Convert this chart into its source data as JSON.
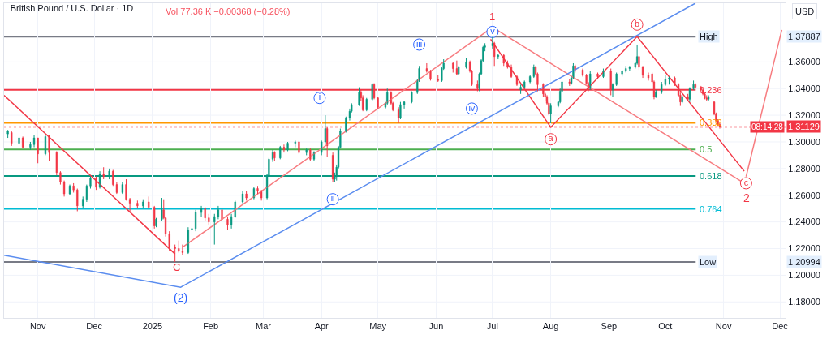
{
  "chart_data": {
    "type": "candlestick",
    "title": "British Pound / U.S. Dollar · 1D",
    "subtitle": "Vol 77.36 K −0.00368 (−0.28%)",
    "ylabel": "USD",
    "x": [
      "2024-10-16",
      "2024-10-18",
      "2024-10-22",
      "2024-10-24",
      "2024-10-28",
      "2024-10-30",
      "2024-11-01",
      "2024-11-05",
      "2024-11-07",
      "2024-11-11",
      "2024-11-13",
      "2024-11-15",
      "2024-11-18",
      "2024-11-20",
      "2024-11-22",
      "2024-11-25",
      "2024-11-27",
      "2024-11-29",
      "2024-12-02",
      "2024-12-04",
      "2024-12-06",
      "2024-12-09",
      "2024-12-11",
      "2024-12-13",
      "2024-12-16",
      "2024-12-18",
      "2024-12-20",
      "2024-12-24",
      "2024-12-27",
      "2024-12-30",
      "2025-01-02",
      "2025-01-03",
      "2025-01-06",
      "2025-01-07",
      "2025-01-08",
      "2025-01-10",
      "2025-01-13",
      "2025-01-15",
      "2025-01-17",
      "2025-01-20",
      "2025-01-22",
      "2025-01-24",
      "2025-01-27",
      "2025-01-29",
      "2025-01-31",
      "2025-02-03",
      "2025-02-05",
      "2025-02-07",
      "2025-02-10",
      "2025-02-12",
      "2025-02-14",
      "2025-02-18",
      "2025-02-20",
      "2025-02-24",
      "2025-02-26",
      "2025-02-28",
      "2025-03-03",
      "2025-03-04",
      "2025-03-06",
      "2025-03-07",
      "2025-03-10",
      "2025-03-12",
      "2025-03-14",
      "2025-03-18",
      "2025-03-20",
      "2025-03-24",
      "2025-03-26",
      "2025-03-28",
      "2025-04-01",
      "2025-04-03",
      "2025-04-04",
      "2025-04-07",
      "2025-04-08",
      "2025-04-09",
      "2025-04-10",
      "2025-04-11",
      "2025-04-14",
      "2025-04-16",
      "2025-04-17",
      "2025-04-21",
      "2025-04-22",
      "2025-04-23",
      "2025-04-25",
      "2025-04-28",
      "2025-04-29",
      "2025-05-01",
      "2025-05-05",
      "2025-05-06",
      "2025-05-08",
      "2025-05-09",
      "2025-05-12",
      "2025-05-13",
      "2025-05-15",
      "2025-05-19",
      "2025-05-22",
      "2025-05-23",
      "2025-05-27",
      "2025-05-29",
      "2025-06-02",
      "2025-06-04",
      "2025-06-05",
      "2025-06-10",
      "2025-06-12",
      "2025-06-13",
      "2025-06-17",
      "2025-06-19",
      "2025-06-20",
      "2025-06-23",
      "2025-06-24",
      "2025-06-25",
      "2025-06-26",
      "2025-06-27",
      "2025-07-01",
      "2025-07-02",
      "2025-07-04",
      "2025-07-07",
      "2025-07-09",
      "2025-07-11",
      "2025-07-14",
      "2025-07-16",
      "2025-07-18",
      "2025-07-21",
      "2025-07-23",
      "2025-07-24",
      "2025-07-25",
      "2025-07-28",
      "2025-07-29",
      "2025-07-30",
      "2025-07-31",
      "2025-08-01",
      "2025-08-05",
      "2025-08-06",
      "2025-08-07",
      "2025-08-11",
      "2025-08-12",
      "2025-08-13",
      "2025-08-14",
      "2025-08-18",
      "2025-08-20",
      "2025-08-21",
      "2025-08-22",
      "2025-08-26",
      "2025-08-29",
      "2025-09-02",
      "2025-09-03",
      "2025-09-05",
      "2025-09-08",
      "2025-09-10",
      "2025-09-12",
      "2025-09-15",
      "2025-09-16",
      "2025-09-17",
      "2025-09-19",
      "2025-09-22",
      "2025-09-24",
      "2025-09-25",
      "2025-09-26",
      "2025-09-29",
      "2025-10-01",
      "2025-10-03",
      "2025-10-06",
      "2025-10-08",
      "2025-10-09",
      "2025-10-10",
      "2025-10-13",
      "2025-10-14",
      "2025-10-16",
      "2025-10-17",
      "2025-10-20",
      "2025-10-21",
      "2025-10-22",
      "2025-10-23",
      "2025-10-24",
      "2025-10-27",
      "2025-10-28",
      "2025-10-29",
      "2025-10-30"
    ],
    "ohlc": [
      [
        1.306,
        1.309,
        1.303,
        1.308
      ],
      [
        1.307,
        1.308,
        1.297,
        1.299
      ],
      [
        1.299,
        1.304,
        1.297,
        1.303
      ],
      [
        1.303,
        1.304,
        1.295,
        1.296
      ],
      [
        1.296,
        1.3,
        1.294,
        1.298
      ],
      [
        1.298,
        1.305,
        1.296,
        1.303
      ],
      [
        1.303,
        1.303,
        1.284,
        1.291
      ],
      [
        1.291,
        1.305,
        1.29,
        1.304
      ],
      [
        1.304,
        1.305,
        1.286,
        1.292
      ],
      [
        1.292,
        1.293,
        1.275,
        1.277
      ],
      [
        1.277,
        1.278,
        1.268,
        1.27
      ],
      [
        1.27,
        1.271,
        1.259,
        1.261
      ],
      [
        1.261,
        1.268,
        1.26,
        1.267
      ],
      [
        1.267,
        1.269,
        1.262,
        1.264
      ],
      [
        1.264,
        1.265,
        1.248,
        1.252
      ],
      [
        1.252,
        1.259,
        1.25,
        1.257
      ],
      [
        1.257,
        1.268,
        1.255,
        1.267
      ],
      [
        1.267,
        1.274,
        1.265,
        1.273
      ],
      [
        1.273,
        1.274,
        1.264,
        1.266
      ],
      [
        1.266,
        1.278,
        1.265,
        1.276
      ],
      [
        1.276,
        1.281,
        1.272,
        1.274
      ],
      [
        1.274,
        1.28,
        1.272,
        1.278
      ],
      [
        1.278,
        1.279,
        1.267,
        1.268
      ],
      [
        1.268,
        1.27,
        1.261,
        1.262
      ],
      [
        1.262,
        1.27,
        1.261,
        1.268
      ],
      [
        1.268,
        1.272,
        1.256,
        1.257
      ],
      [
        1.257,
        1.258,
        1.247,
        1.254
      ],
      [
        1.254,
        1.256,
        1.25,
        1.252
      ],
      [
        1.252,
        1.257,
        1.25,
        1.255
      ],
      [
        1.255,
        1.259,
        1.25,
        1.251
      ],
      [
        1.251,
        1.252,
        1.235,
        1.237
      ],
      [
        1.237,
        1.243,
        1.236,
        1.242
      ],
      [
        1.242,
        1.258,
        1.241,
        1.249
      ],
      [
        1.249,
        1.257,
        1.242,
        1.243
      ],
      [
        1.243,
        1.244,
        1.229,
        1.231
      ],
      [
        1.231,
        1.233,
        1.218,
        1.221
      ],
      [
        1.221,
        1.223,
        1.20994,
        1.22
      ],
      [
        1.22,
        1.226,
        1.217,
        1.218
      ],
      [
        1.218,
        1.223,
        1.215,
        1.217
      ],
      [
        1.217,
        1.236,
        1.216,
        1.234
      ],
      [
        1.234,
        1.239,
        1.23,
        1.235
      ],
      [
        1.235,
        1.249,
        1.233,
        1.247
      ],
      [
        1.247,
        1.252,
        1.244,
        1.25
      ],
      [
        1.25,
        1.251,
        1.241,
        1.243
      ],
      [
        1.243,
        1.246,
        1.238,
        1.24
      ],
      [
        1.24,
        1.246,
        1.223,
        1.244
      ],
      [
        1.244,
        1.252,
        1.242,
        1.249
      ],
      [
        1.249,
        1.251,
        1.24,
        1.242
      ],
      [
        1.242,
        1.244,
        1.234,
        1.238
      ],
      [
        1.238,
        1.246,
        1.235,
        1.244
      ],
      [
        1.244,
        1.256,
        1.243,
        1.255
      ],
      [
        1.255,
        1.263,
        1.254,
        1.261
      ],
      [
        1.261,
        1.263,
        1.256,
        1.258
      ],
      [
        1.258,
        1.266,
        1.257,
        1.265
      ],
      [
        1.265,
        1.267,
        1.261,
        1.263
      ],
      [
        1.263,
        1.264,
        1.256,
        1.258
      ],
      [
        1.258,
        1.276,
        1.257,
        1.275
      ],
      [
        1.275,
        1.288,
        1.274,
        1.287
      ],
      [
        1.287,
        1.294,
        1.285,
        1.292
      ],
      [
        1.292,
        1.293,
        1.286,
        1.288
      ],
      [
        1.288,
        1.297,
        1.287,
        1.296
      ],
      [
        1.296,
        1.298,
        1.292,
        1.294
      ],
      [
        1.294,
        1.3,
        1.293,
        1.299
      ],
      [
        1.299,
        1.301,
        1.296,
        1.3
      ],
      [
        1.3,
        1.301,
        1.291,
        1.292
      ],
      [
        1.292,
        1.295,
        1.29,
        1.294
      ],
      [
        1.294,
        1.295,
        1.286,
        1.287
      ],
      [
        1.287,
        1.293,
        1.286,
        1.292
      ],
      [
        1.292,
        1.301,
        1.29,
        1.3
      ],
      [
        1.3,
        1.32,
        1.299,
        1.31
      ],
      [
        1.31,
        1.311,
        1.289,
        1.297
      ],
      [
        1.29,
        1.292,
        1.27,
        1.272
      ],
      [
        1.272,
        1.277,
        1.27,
        1.274
      ],
      [
        1.274,
        1.283,
        1.271,
        1.281
      ],
      [
        1.281,
        1.297,
        1.28,
        1.296
      ],
      [
        1.296,
        1.31,
        1.295,
        1.308
      ],
      [
        1.308,
        1.319,
        1.307,
        1.318
      ],
      [
        1.318,
        1.325,
        1.316,
        1.323
      ],
      [
        1.323,
        1.329,
        1.322,
        1.328
      ],
      [
        1.328,
        1.341,
        1.327,
        1.337
      ],
      [
        1.337,
        1.339,
        1.331,
        1.333
      ],
      [
        1.333,
        1.335,
        1.323,
        1.324
      ],
      [
        1.324,
        1.333,
        1.323,
        1.332
      ],
      [
        1.332,
        1.344,
        1.331,
        1.343
      ],
      [
        1.343,
        1.344,
        1.332,
        1.333
      ],
      [
        1.333,
        1.334,
        1.325,
        1.326
      ],
      [
        1.326,
        1.33,
        1.325,
        1.329
      ],
      [
        1.329,
        1.34,
        1.328,
        1.337
      ],
      [
        1.337,
        1.338,
        1.328,
        1.329
      ],
      [
        1.329,
        1.33,
        1.323,
        1.324
      ],
      [
        1.324,
        1.326,
        1.314,
        1.318
      ],
      [
        1.318,
        1.33,
        1.317,
        1.328
      ],
      [
        1.328,
        1.331,
        1.325,
        1.33
      ],
      [
        1.33,
        1.338,
        1.329,
        1.337
      ],
      [
        1.337,
        1.347,
        1.336,
        1.346
      ],
      [
        1.346,
        1.357,
        1.345,
        1.355
      ],
      [
        1.355,
        1.359,
        1.352,
        1.353
      ],
      [
        1.353,
        1.354,
        1.346,
        1.347
      ],
      [
        1.347,
        1.35,
        1.345,
        1.346
      ],
      [
        1.346,
        1.356,
        1.345,
        1.355
      ],
      [
        1.355,
        1.362,
        1.354,
        1.359
      ],
      [
        1.359,
        1.36,
        1.352,
        1.355
      ],
      [
        1.355,
        1.361,
        1.35,
        1.351
      ],
      [
        1.351,
        1.357,
        1.35,
        1.356
      ],
      [
        1.356,
        1.363,
        1.355,
        1.36
      ],
      [
        1.36,
        1.361,
        1.352,
        1.353
      ],
      [
        1.353,
        1.354,
        1.342,
        1.343
      ],
      [
        1.343,
        1.346,
        1.338,
        1.34
      ],
      [
        1.34,
        1.352,
        1.338,
        1.351
      ],
      [
        1.351,
        1.362,
        1.35,
        1.361
      ],
      [
        1.361,
        1.372,
        1.36,
        1.371
      ],
      [
        1.371,
        1.374,
        1.368,
        1.372
      ],
      [
        1.372,
        1.37887,
        1.37,
        1.374
      ],
      [
        1.374,
        1.375,
        1.357,
        1.364
      ],
      [
        1.364,
        1.366,
        1.362,
        1.365
      ],
      [
        1.365,
        1.366,
        1.357,
        1.359
      ],
      [
        1.359,
        1.361,
        1.355,
        1.356
      ],
      [
        1.356,
        1.358,
        1.348,
        1.349
      ],
      [
        1.349,
        1.35,
        1.342,
        1.343
      ],
      [
        1.339,
        1.343,
        1.336,
        1.341
      ],
      [
        1.341,
        1.346,
        1.34,
        1.345
      ],
      [
        1.345,
        1.35,
        1.344,
        1.349
      ],
      [
        1.349,
        1.358,
        1.348,
        1.356
      ],
      [
        1.356,
        1.357,
        1.35,
        1.351
      ],
      [
        1.351,
        1.352,
        1.338,
        1.343
      ],
      [
        1.343,
        1.344,
        1.334,
        1.336
      ],
      [
        1.336,
        1.337,
        1.331,
        1.334
      ],
      [
        1.334,
        1.335,
        1.328,
        1.329
      ],
      [
        1.329,
        1.33,
        1.32,
        1.321
      ],
      [
        1.321,
        1.329,
        1.314,
        1.327
      ],
      [
        1.327,
        1.331,
        1.326,
        1.33
      ],
      [
        1.33,
        1.34,
        1.329,
        1.338
      ],
      [
        1.338,
        1.346,
        1.337,
        1.345
      ],
      [
        1.345,
        1.347,
        1.342,
        1.344
      ],
      [
        1.344,
        1.349,
        1.343,
        1.348
      ],
      [
        1.348,
        1.359,
        1.347,
        1.357
      ],
      [
        1.357,
        1.358,
        1.352,
        1.354
      ],
      [
        1.354,
        1.355,
        1.349,
        1.35
      ],
      [
        1.35,
        1.351,
        1.343,
        1.344
      ],
      [
        1.344,
        1.345,
        1.338,
        1.34
      ],
      [
        1.34,
        1.353,
        1.339,
        1.351
      ],
      [
        1.351,
        1.352,
        1.347,
        1.349
      ],
      [
        1.349,
        1.355,
        1.348,
        1.353
      ],
      [
        1.353,
        1.355,
        1.335,
        1.339
      ],
      [
        1.339,
        1.344,
        1.334,
        1.343
      ],
      [
        1.343,
        1.352,
        1.342,
        1.351
      ],
      [
        1.351,
        1.354,
        1.349,
        1.353
      ],
      [
        1.353,
        1.357,
        1.352,
        1.355
      ],
      [
        1.355,
        1.357,
        1.353,
        1.356
      ],
      [
        1.356,
        1.36,
        1.355,
        1.359
      ],
      [
        1.359,
        1.373,
        1.358,
        1.364
      ],
      [
        1.364,
        1.365,
        1.354,
        1.356
      ],
      [
        1.356,
        1.357,
        1.348,
        1.35
      ],
      [
        1.35,
        1.352,
        1.346,
        1.348
      ],
      [
        1.351,
        1.352,
        1.344,
        1.345
      ],
      [
        1.345,
        1.346,
        1.332,
        1.334
      ],
      [
        1.334,
        1.339,
        1.333,
        1.337
      ],
      [
        1.337,
        1.345,
        1.336,
        1.343
      ],
      [
        1.343,
        1.35,
        1.342,
        1.347
      ],
      [
        1.347,
        1.349,
        1.343,
        1.348
      ],
      [
        1.348,
        1.349,
        1.342,
        1.343
      ],
      [
        1.343,
        1.344,
        1.334,
        1.335
      ],
      [
        1.335,
        1.337,
        1.327,
        1.33
      ],
      [
        1.33,
        1.335,
        1.329,
        1.334
      ],
      [
        1.334,
        1.336,
        1.331,
        1.332
      ],
      [
        1.332,
        1.341,
        1.33,
        1.34
      ],
      [
        1.34,
        1.346,
        1.339,
        1.343
      ],
      [
        1.343,
        1.344,
        1.34,
        1.341
      ],
      [
        1.341,
        1.342,
        1.338,
        1.339
      ],
      [
        1.339,
        1.34,
        1.335,
        1.336
      ],
      [
        1.336,
        1.337,
        1.332,
        1.333
      ],
      [
        1.333,
        1.335,
        1.331,
        1.332
      ],
      [
        1.332,
        1.335,
        1.331,
        1.334
      ],
      [
        1.33,
        1.331,
        1.32,
        1.321
      ],
      [
        1.321,
        1.322,
        1.315,
        1.316
      ],
      [
        1.316,
        1.317,
        1.312,
        1.313
      ],
      [
        1.313,
        1.314,
        1.31,
        1.31129
      ]
    ],
    "colors": [
      "#089981",
      "#f23645",
      "#089981",
      "#f23645",
      "#089981",
      "#089981",
      "#f23645",
      "#089981",
      "#f23645",
      "#f23645",
      "#f23645",
      "#f23645",
      "#089981",
      "#f23645",
      "#f23645",
      "#089981",
      "#089981",
      "#089981",
      "#f23645",
      "#089981",
      "#f23645",
      "#089981",
      "#f23645",
      "#f23645",
      "#089981",
      "#f23645",
      "#f23645",
      "#f23645",
      "#089981",
      "#f23645",
      "#f23645",
      "#089981",
      "#089981",
      "#f23645",
      "#f23645",
      "#f23645",
      "#f23645",
      "#f23645",
      "#f23645",
      "#089981",
      "#089981",
      "#089981",
      "#089981",
      "#f23645",
      "#f23645",
      "#089981",
      "#089981",
      "#f23645",
      "#f23645",
      "#089981",
      "#089981",
      "#089981",
      "#f23645",
      "#089981",
      "#f23645",
      "#f23645",
      "#089981",
      "#089981",
      "#089981",
      "#f23645",
      "#089981",
      "#f23645",
      "#089981",
      "#089981",
      "#f23645",
      "#089981",
      "#f23645",
      "#089981",
      "#089981",
      "#089981",
      "#f23645",
      "#f23645",
      "#089981",
      "#089981",
      "#089981",
      "#089981",
      "#089981",
      "#089981",
      "#089981",
      "#089981",
      "#f23645",
      "#f23645",
      "#089981",
      "#089981",
      "#f23645",
      "#f23645",
      "#089981",
      "#089981",
      "#f23645",
      "#f23645",
      "#f23645",
      "#089981",
      "#089981",
      "#089981",
      "#089981",
      "#089981",
      "#f23645",
      "#f23645",
      "#f23645",
      "#089981",
      "#089981",
      "#f23645",
      "#f23645",
      "#089981",
      "#089981",
      "#f23645",
      "#f23645",
      "#f23645",
      "#089981",
      "#089981",
      "#089981",
      "#089981",
      "#089981",
      "#f23645",
      "#089981",
      "#f23645",
      "#f23645",
      "#f23645",
      "#f23645",
      "#089981",
      "#089981",
      "#089981",
      "#089981",
      "#f23645",
      "#f23645",
      "#f23645",
      "#f23645",
      "#f23645",
      "#f23645",
      "#089981",
      "#089981",
      "#089981",
      "#089981",
      "#f23645",
      "#089981",
      "#089981",
      "#f23645",
      "#f23645",
      "#f23645",
      "#f23645",
      "#089981",
      "#f23645",
      "#089981",
      "#f23645",
      "#089981",
      "#089981",
      "#089981",
      "#089981",
      "#089981",
      "#089981",
      "#089981",
      "#f23645",
      "#f23645",
      "#f23645",
      "#f23645",
      "#f23645",
      "#089981",
      "#089981",
      "#089981",
      "#089981",
      "#f23645",
      "#f23645",
      "#f23645",
      "#089981",
      "#f23645",
      "#089981",
      "#089981",
      "#f23645",
      "#f23645",
      "#f23645",
      "#f23645",
      "#f23645",
      "#089981",
      "#f23645",
      "#f23645",
      "#f23645",
      "#f23645"
    ],
    "series": [
      {
        "type": "line",
        "color": "#f23645",
        "x": [
          "2024-10-14",
          "2025-01-13"
        ],
        "values": [
          1.335,
          1.216
        ]
      },
      {
        "type": "line",
        "color": "#f77c80",
        "x": [
          "2025-01-17",
          "2025-07-01"
        ],
        "values": [
          1.221,
          1.386
        ]
      },
      {
        "type": "line",
        "color": "#f77c80",
        "x": [
          "2025-07-01",
          "2025-11-12"
        ],
        "values": [
          1.386,
          1.269
        ]
      },
      {
        "type": "line",
        "color": "#f23645",
        "x": [
          "2025-06-30",
          "2025-08-01",
          "2025-09-16",
          "2025-11-12"
        ],
        "values": [
          1.377,
          1.311,
          1.379,
          1.278
        ]
      },
      {
        "type": "line",
        "color": "#f77c80",
        "x": [
          "2025-11-13",
          "2025-12-02"
        ],
        "values": [
          1.274,
          1.384
        ]
      },
      {
        "type": "line",
        "color": "#5b8def",
        "x": [
          "2024-10-14",
          "2025-01-16",
          "2025-10-17"
        ],
        "values": [
          1.215,
          1.191,
          1.404
        ]
      },
      {
        "type": "scatter",
        "marker": "circle",
        "color": "#f23645",
        "name": "a",
        "x": [
          "2025-08-01"
        ],
        "values": [
          1.302
        ]
      },
      {
        "type": "scatter",
        "marker": "circle",
        "color": "#f23645",
        "name": "b",
        "x": [
          "2025-09-16"
        ],
        "values": [
          1.388
        ]
      },
      {
        "type": "scatter",
        "marker": "circle",
        "color": "#f23645",
        "name": "c",
        "x": [
          "2025-11-13"
        ],
        "values": [
          1.269
        ]
      },
      {
        "type": "scatter",
        "marker": "circle",
        "color": "#2962ff",
        "name": "i",
        "x": [
          "2025-03-31"
        ],
        "values": [
          1.333
        ]
      },
      {
        "type": "scatter",
        "marker": "circle",
        "color": "#2962ff",
        "name": "ii",
        "x": [
          "2025-04-07"
        ],
        "values": [
          1.257
        ]
      },
      {
        "type": "scatter",
        "marker": "circle",
        "color": "#2962ff",
        "name": "iii",
        "x": [
          "2025-05-23"
        ],
        "values": [
          1.373
        ]
      },
      {
        "type": "scatter",
        "marker": "circle",
        "color": "#2962ff",
        "name": "iv",
        "x": [
          "2025-06-20"
        ],
        "values": [
          1.325
        ]
      },
      {
        "type": "scatter",
        "marker": "circle",
        "color": "#2962ff",
        "name": "v",
        "x": [
          "2025-07-01"
        ],
        "values": [
          1.3825
        ]
      }
    ],
    "ref_lines": [
      {
        "axis": "y",
        "value": 1.37887,
        "color": "#787b86"
      },
      {
        "axis": "y",
        "value": 1.339,
        "color": "#f23645"
      },
      {
        "axis": "y",
        "value": 1.3143,
        "color": "#ff9800"
      },
      {
        "axis": "y",
        "value": 1.2944,
        "color": "#4caf50"
      },
      {
        "axis": "y",
        "value": 1.2745,
        "color": "#089981"
      },
      {
        "axis": "y",
        "value": 1.2498,
        "color": "#00bcd4"
      },
      {
        "axis": "y",
        "value": 1.20994,
        "color": "#787b86"
      },
      {
        "axis": "y",
        "value": 1.31129,
        "label": "1.31129",
        "color": "#f23645",
        "line_style": "dotted"
      }
    ],
    "annotations": [
      "08:14:28",
      "1",
      "C",
      "2",
      "(2)",
      "1.37887",
      "1.20994",
      "High",
      "0.236",
      "0.382",
      "0.5",
      "0.618",
      "0.764",
      "Low"
    ],
    "xlim": [
      "2024-10-14",
      "2025-12-04"
    ],
    "xticks": [
      {
        "value": "2024-11-01",
        "label": "Nov"
      },
      {
        "value": "2024-12-01",
        "label": "Dec"
      },
      {
        "value": "2025-01-01",
        "label": "2025"
      },
      {
        "value": "2025-02-01",
        "label": "Feb"
      },
      {
        "value": "2025-03-01",
        "label": "Mar"
      },
      {
        "value": "2025-04-01",
        "label": "Apr"
      },
      {
        "value": "2025-05-01",
        "label": "May"
      },
      {
        "value": "2025-06-01",
        "label": "Jun"
      },
      {
        "value": "2025-07-01",
        "label": "Jul"
      },
      {
        "value": "2025-08-01",
        "label": "Aug"
      },
      {
        "value": "2025-09-01",
        "label": "Sep"
      },
      {
        "value": "2025-10-01",
        "label": "Oct"
      },
      {
        "value": "2025-11-01",
        "label": "Nov"
      },
      {
        "value": "2025-12-01",
        "label": "Dec"
      }
    ],
    "ylim": [
      1.168,
      1.404
    ],
    "yticks": [
      {
        "value": 1.18,
        "label": "1.18000"
      },
      {
        "value": 1.2,
        "label": "1.20000"
      },
      {
        "value": 1.22,
        "label": "1.22000"
      },
      {
        "value": 1.24,
        "label": "1.24000"
      },
      {
        "value": 1.26,
        "label": "1.26000"
      },
      {
        "value": 1.28,
        "label": "1.28000"
      },
      {
        "value": 1.3,
        "label": "1.30000"
      },
      {
        "value": 1.32,
        "label": "1.32000"
      },
      {
        "value": 1.34,
        "label": "1.34000"
      },
      {
        "value": 1.36,
        "label": "1.36000"
      }
    ],
    "grid": true
  }
}
